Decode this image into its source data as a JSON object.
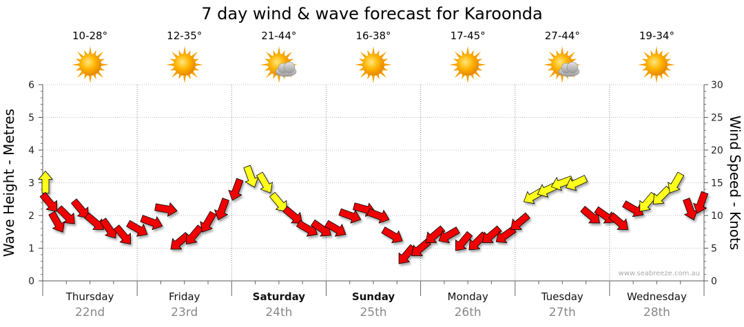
{
  "chart_data": {
    "type": "line",
    "title": "7 day wind & wave forecast for Karoonda",
    "ylabel_left": "Wave Height - Metres",
    "ylabel_right": "Wind Speed - Knots",
    "ylim_left": [
      0,
      6
    ],
    "ylim_right": [
      0,
      30
    ],
    "yticks_left": [
      "0",
      "1",
      "2",
      "3",
      "4",
      "5",
      "6"
    ],
    "yticks_right": [
      "0",
      "5",
      "10",
      "15",
      "20",
      "25",
      "30"
    ],
    "credit": "www.seabreeze.com.au",
    "days": [
      {
        "name": "Thursday",
        "date": "22nd",
        "temp": "10-28°",
        "icon": "sun-icon",
        "bold": false
      },
      {
        "name": "Friday",
        "date": "23rd",
        "temp": "12-35°",
        "icon": "sun-icon",
        "bold": false
      },
      {
        "name": "Saturday",
        "date": "24th",
        "temp": "21-44°",
        "icon": "sun-cloud-icon",
        "bold": true
      },
      {
        "name": "Sunday",
        "date": "25th",
        "temp": "16-38°",
        "icon": "sun-icon",
        "bold": true
      },
      {
        "name": "Monday",
        "date": "26th",
        "temp": "17-45°",
        "icon": "sun-icon",
        "bold": false
      },
      {
        "name": "Tuesday",
        "date": "27th",
        "temp": "27-44°",
        "icon": "sun-cloud-icon",
        "bold": false
      },
      {
        "name": "Wednesday",
        "date": "28th",
        "temp": "19-34°",
        "icon": "sun-icon",
        "bold": false
      }
    ],
    "wind": {
      "unit": "knots",
      "x_day": [
        0.0,
        0.07,
        0.15,
        0.25,
        0.4,
        0.55,
        0.7,
        0.85,
        1.0,
        1.15,
        1.3,
        1.45,
        1.6,
        1.75,
        1.9,
        2.05,
        2.2,
        2.35,
        2.5,
        2.65,
        2.8,
        2.95,
        3.1,
        3.25,
        3.4,
        3.55,
        3.7,
        3.85,
        4.0,
        4.15,
        4.3,
        4.45,
        4.6,
        4.75,
        4.9,
        5.05,
        5.2,
        5.35,
        5.5,
        5.65,
        5.8,
        5.95,
        6.1,
        6.25,
        6.4,
        6.55,
        6.7,
        6.85,
        6.97
      ],
      "speed": [
        15,
        12,
        9,
        10,
        11,
        9,
        8,
        7,
        8,
        9,
        11,
        6,
        7,
        9,
        11,
        14,
        16,
        15,
        12,
        10,
        8,
        8,
        8,
        10,
        11,
        10,
        7,
        4,
        5,
        7,
        7,
        6,
        6,
        7,
        7,
        9,
        13,
        14,
        15,
        15,
        10,
        10,
        9,
        11,
        12,
        13,
        15,
        11,
        12
      ],
      "color": [
        "yellow",
        "red",
        "red",
        "red",
        "red",
        "red",
        "red",
        "red",
        "red",
        "red",
        "red",
        "red",
        "red",
        "red",
        "red",
        "red",
        "yellow",
        "yellow",
        "yellow",
        "red",
        "red",
        "red",
        "red",
        "red",
        "red",
        "red",
        "red",
        "red",
        "red",
        "red",
        "red",
        "red",
        "red",
        "red",
        "red",
        "red",
        "yellow",
        "yellow",
        "yellow",
        "yellow",
        "red",
        "red",
        "red",
        "red",
        "yellow",
        "yellow",
        "yellow",
        "red",
        "red"
      ],
      "direction_deg": [
        0,
        140,
        150,
        135,
        140,
        130,
        145,
        140,
        120,
        110,
        100,
        230,
        220,
        210,
        200,
        200,
        160,
        150,
        140,
        130,
        120,
        125,
        120,
        110,
        105,
        110,
        120,
        220,
        230,
        230,
        240,
        220,
        225,
        230,
        235,
        230,
        240,
        245,
        250,
        245,
        130,
        125,
        130,
        120,
        220,
        225,
        210,
        160,
        200
      ]
    }
  }
}
